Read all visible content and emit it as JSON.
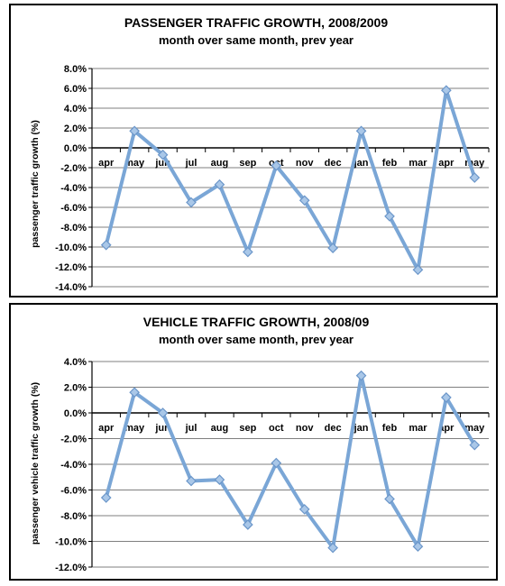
{
  "colors": {
    "line": "#7aa6d6",
    "marker_fill": "#a9c7e8",
    "marker_stroke": "#6b96c9",
    "axis": "#000000",
    "grid": "#000000"
  },
  "chart_data": [
    {
      "type": "line",
      "title": "PASSENGER TRAFFIC GROWTH, 2008/2009",
      "subtitle": "month over same month, prev year",
      "xlabel": "",
      "ylabel": "passenger traffic growth (%)",
      "ylim": [
        -14,
        8
      ],
      "yticks": [
        8,
        6,
        4,
        2,
        0,
        -2,
        -4,
        -6,
        -8,
        -10,
        -12,
        -14
      ],
      "ytick_labels": [
        "8.0%",
        "6.0%",
        "4.0%",
        "2.0%",
        "0.0%",
        "-2.0%",
        "-4.0%",
        "-6.0%",
        "-8.0%",
        "-10.0%",
        "-12.0%",
        "-14.0%"
      ],
      "grid": "horizontal",
      "legend": "none",
      "categories": [
        "apr",
        "may",
        "jun",
        "jul",
        "aug",
        "sep",
        "oct",
        "nov",
        "dec",
        "jan",
        "feb",
        "mar",
        "apr",
        "may"
      ],
      "series": [
        {
          "values": [
            -9.8,
            1.7,
            -0.7,
            -5.5,
            -3.7,
            -10.5,
            -1.8,
            -5.3,
            -10.1,
            1.7,
            -6.9,
            -12.3,
            5.8,
            -3.0
          ]
        }
      ]
    },
    {
      "type": "line",
      "title": "VEHICLE TRAFFIC GROWTH, 2008/09",
      "subtitle": "month over same month, prev year",
      "xlabel": "",
      "ylabel": "passenger vehicle traffic growth (%)",
      "ylim": [
        -12,
        4
      ],
      "yticks": [
        4,
        2,
        0,
        -2,
        -4,
        -6,
        -8,
        -10,
        -12
      ],
      "ytick_labels": [
        "4.0%",
        "2.0%",
        "0.0%",
        "-2.0%",
        "-4.0%",
        "-6.0%",
        "-8.0%",
        "-10.0%",
        "-12.0%"
      ],
      "grid": "horizontal",
      "legend": "none",
      "categories": [
        "apr",
        "may",
        "jun",
        "jul",
        "aug",
        "sep",
        "oct",
        "nov",
        "dec",
        "jan",
        "feb",
        "mar",
        "apr",
        "may"
      ],
      "series": [
        {
          "values": [
            -6.6,
            1.6,
            0.0,
            -5.3,
            -5.2,
            -8.7,
            -3.9,
            -7.5,
            -10.5,
            2.9,
            -6.7,
            -10.4,
            1.2,
            -2.5
          ]
        }
      ]
    }
  ]
}
